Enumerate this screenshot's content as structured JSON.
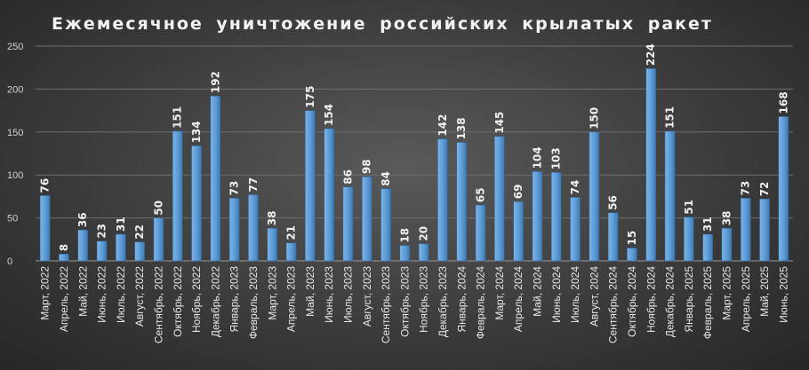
{
  "chart_data": {
    "type": "bar",
    "title": "Ежемесячное  уничтожение  российских  крылатых  ракет",
    "xlabel": "",
    "ylabel": "",
    "ylim": [
      0,
      250
    ],
    "yticks": [
      0,
      50,
      100,
      150,
      200,
      250
    ],
    "grid": true,
    "bar_color": "#5b9bd5",
    "categories": [
      "Март, 2022",
      "Апрель, 2022",
      "Май, 2022",
      "Июнь, 2022",
      "Июль, 2022",
      "Август, 2022",
      "Сентябрь, 2022",
      "Октябрь, 2022",
      "Ноябрь, 2022",
      "Декабрь, 2022",
      "Январь, 2023",
      "Февраль, 2023",
      "Март, 2023",
      "Апрель, 2023",
      "Май, 2023",
      "Июнь, 2023",
      "Июль, 2023",
      "Август, 2023",
      "Сентябрь, 2023",
      "Октябрь, 2023",
      "Ноябрь, 2023",
      "Декабрь, 2023",
      "Январь, 2024",
      "Февраль, 2024",
      "Март, 2024",
      "Апрель, 2024",
      "Май, 2024",
      "Июнь, 2024",
      "Июль, 2024",
      "Август, 2024",
      "Сентябрь, 2024",
      "Октябрь, 2024",
      "Ноябрь, 2024",
      "Декабрь, 2024",
      "Январь, 2025",
      "Февраль, 2025",
      "Март, 2025",
      "Апрель, 2025",
      "Май, 2025",
      "Июнь, 2025"
    ],
    "values": [
      76,
      8,
      36,
      23,
      31,
      22,
      50,
      151,
      134,
      192,
      73,
      77,
      38,
      21,
      175,
      154,
      86,
      98,
      84,
      18,
      20,
      142,
      138,
      65,
      145,
      69,
      104,
      103,
      74,
      150,
      56,
      15,
      224,
      151,
      51,
      31,
      38,
      73,
      72,
      168
    ]
  }
}
